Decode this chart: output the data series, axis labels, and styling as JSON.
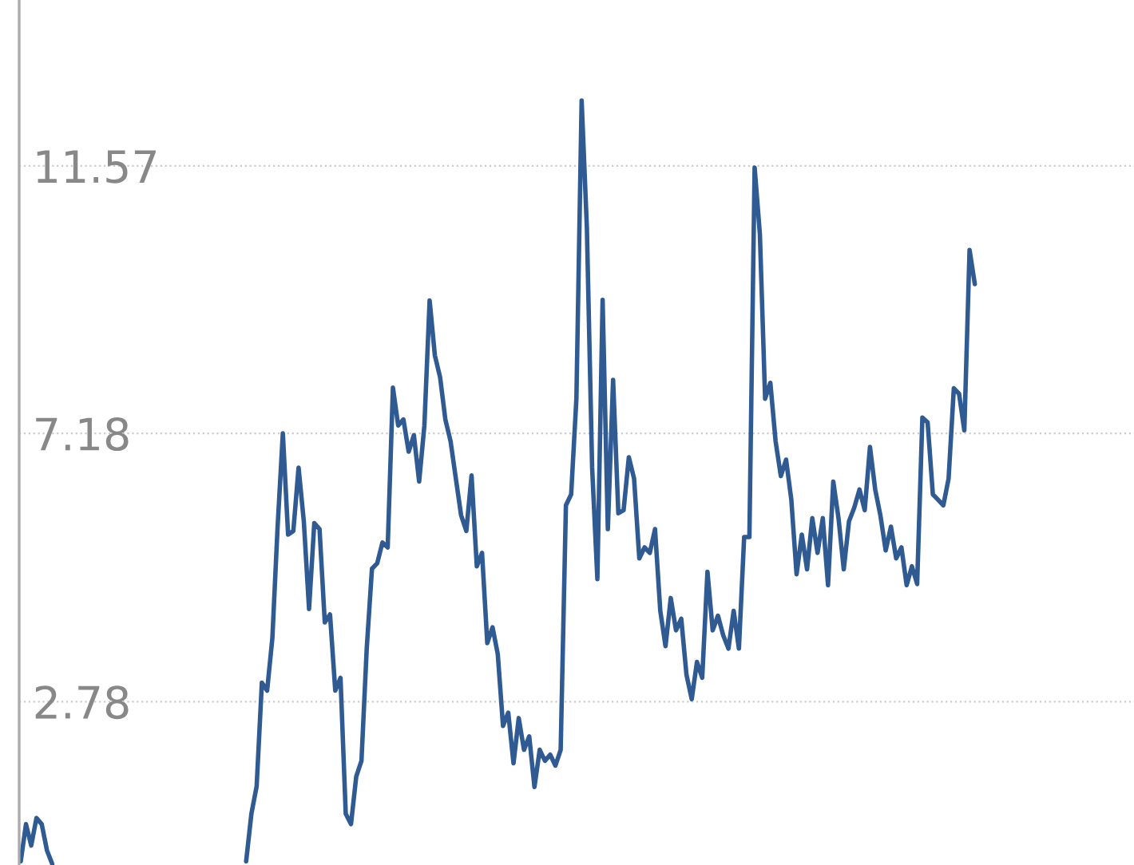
{
  "chart_data": {
    "type": "line",
    "categories": [
      null,
      null,
      null,
      null,
      null,
      null,
      null,
      null,
      null,
      null,
      null,
      null,
      null,
      null,
      null,
      null,
      null,
      null,
      null,
      null,
      null,
      null,
      null,
      null,
      null,
      null,
      null,
      null,
      null,
      null,
      null,
      null,
      null,
      null,
      null,
      null,
      null,
      null,
      null,
      null,
      null,
      null,
      null,
      null,
      null,
      null,
      null,
      null,
      null,
      null,
      null,
      null,
      null,
      null,
      null,
      null,
      null,
      null,
      null,
      null,
      null,
      null,
      null,
      null,
      null,
      null,
      null,
      null,
      null,
      null,
      null,
      null,
      null,
      null,
      null,
      null,
      null,
      null,
      null,
      null,
      null,
      null,
      null,
      null,
      null,
      null,
      null,
      null,
      null,
      null,
      null,
      null,
      null,
      null,
      null,
      null,
      null,
      null,
      null,
      null,
      null,
      null,
      null,
      null,
      null,
      null,
      null,
      null,
      null,
      null,
      null,
      null,
      null,
      null,
      null,
      null,
      null,
      null,
      null,
      null,
      null,
      null,
      null,
      null,
      null,
      null,
      null,
      null,
      null,
      null,
      null,
      null,
      null,
      null,
      null,
      null,
      null,
      null,
      null,
      null,
      null,
      null,
      null,
      null,
      null,
      null,
      null,
      null,
      null,
      null,
      null,
      null,
      null,
      null,
      null,
      null,
      null,
      null,
      null,
      null,
      null,
      null,
      null,
      null,
      null,
      null,
      null,
      null,
      null,
      null,
      null,
      null,
      null,
      null,
      null,
      null,
      null,
      null,
      null,
      null,
      null,
      null,
      null
    ],
    "series": [
      {
        "color": "#2f5a92",
        "values": [
          0.16,
          0.77,
          0.42,
          0.87,
          0.77,
          0.34,
          0.12,
          null,
          null,
          null,
          null,
          null,
          null,
          null,
          null,
          null,
          null,
          null,
          null,
          null,
          null,
          null,
          null,
          null,
          null,
          null,
          null,
          null,
          null,
          null,
          null,
          null,
          null,
          null,
          null,
          null,
          null,
          null,
          null,
          null,
          null,
          null,
          null,
          null,
          null,
          null,
          null,
          null,
          null,
          null,
          null,
          null,
          null,
          null,
          null,
          null,
          null,
          null,
          null,
          null,
          null,
          null,
          null,
          null,
          null,
          null,
          null,
          null,
          null,
          null,
          null,
          null,
          null,
          null,
          null,
          null,
          null,
          null,
          null,
          null,
          null,
          null,
          null,
          null,
          null,
          null,
          null,
          null,
          null,
          null,
          null,
          null,
          null,
          null,
          null,
          null,
          null,
          null,
          null,
          null,
          null,
          null,
          null,
          null,
          null,
          null,
          null,
          null,
          null,
          null,
          null,
          null,
          null,
          null,
          null,
          null,
          null,
          null,
          null,
          null,
          null,
          null,
          null,
          null,
          null,
          null,
          null,
          null,
          null,
          null,
          null,
          null,
          null,
          null,
          null,
          null,
          null,
          null,
          null,
          null,
          null,
          null,
          null,
          null,
          null,
          null,
          null,
          null,
          null,
          null,
          null,
          null,
          null,
          null,
          null,
          null,
          null,
          null,
          null,
          null,
          null,
          null,
          null,
          null,
          null,
          null,
          null,
          null,
          null,
          null,
          null,
          null,
          null,
          null,
          null,
          null,
          null,
          null,
          null,
          null,
          null,
          null,
          null
        ]
      },
      {
        "color": "#2f5a92",
        "values": [
          null,
          null,
          null,
          null,
          null,
          null,
          null,
          null,
          null,
          null,
          null,
          null,
          null,
          null,
          null,
          null,
          null,
          null,
          null,
          null,
          null,
          null,
          null,
          null,
          null,
          null,
          null,
          null,
          null,
          null,
          null,
          null,
          null,
          null,
          null,
          null,
          null,
          null,
          null,
          null,
          null,
          null,
          null,
          0.16,
          0.94,
          1.39,
          3.09,
          2.96,
          3.82,
          5.65,
          7.18,
          5.52,
          5.58,
          6.62,
          5.74,
          4.3,
          5.71,
          5.61,
          4.08,
          4.21,
          2.96,
          3.17,
          0.94,
          0.77,
          1.55,
          1.81,
          3.65,
          4.96,
          5.05,
          5.39,
          5.31,
          7.93,
          7.31,
          7.41,
          6.88,
          7.15,
          6.39,
          7.31,
          9.36,
          8.46,
          8.1,
          7.41,
          7.05,
          6.44,
          5.84,
          5.58,
          6.49,
          5.0,
          5.22,
          3.74,
          4.0,
          3.56,
          2.38,
          2.6,
          1.77,
          2.51,
          1.99,
          2.21,
          1.38,
          1.99,
          1.81,
          1.91,
          1.73,
          1.99,
          6.0,
          6.18,
          7.75,
          12.64,
          10.55,
          6.62,
          4.79,
          9.37,
          5.61,
          8.06,
          5.87,
          5.92,
          6.79,
          6.44,
          5.13,
          5.31,
          5.22,
          5.61,
          4.27,
          3.69,
          4.48,
          3.95,
          4.14,
          3.22,
          2.82,
          3.43,
          3.17,
          4.91,
          3.95,
          4.19,
          3.87,
          3.65,
          4.27,
          3.65,
          5.48,
          5.48,
          11.54,
          10.45,
          7.75,
          8.01,
          7.05,
          6.48,
          6.75,
          6.09,
          4.87,
          5.52,
          4.95,
          5.79,
          5.22,
          5.79,
          4.69,
          6.39,
          5.79,
          4.95,
          5.74,
          5.96,
          6.26,
          5.92,
          6.96,
          6.26,
          5.83,
          5.26,
          5.65,
          5.13,
          5.31,
          4.69,
          5.0,
          4.71,
          7.44,
          7.36,
          6.18,
          6.09,
          6.0,
          6.44,
          7.92,
          7.83,
          7.23,
          10.19,
          9.63
        ]
      }
    ],
    "ylim": [
      0.1,
      14.29
    ],
    "yticks": [
      2.78,
      7.18,
      11.57
    ],
    "grid": "y",
    "tick_labels": "y",
    "line_style": "solid",
    "marker": "none"
  }
}
